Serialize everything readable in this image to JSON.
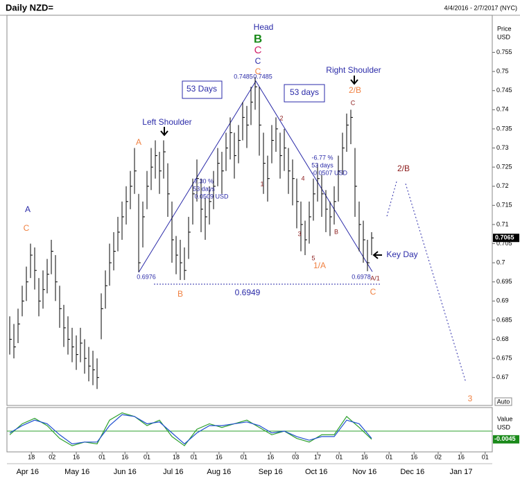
{
  "chart_data": {
    "type": "ohlc",
    "title": "Daily NZD=",
    "subtitle": "4/4/2016 - 2/7/2017 (NYC)",
    "y_label": [
      "Price",
      "USD"
    ],
    "y2_label": [
      "Value",
      "USD"
    ],
    "scale_button": "Auto",
    "xlim": [
      -0.67,
      116
    ],
    "xticks": [
      {
        "value": 5.2,
        "label": "18"
      },
      {
        "value": 10.2,
        "label": "02"
      },
      {
        "value": 16,
        "label": "16"
      },
      {
        "value": 22.2,
        "label": "01"
      },
      {
        "value": 27.7,
        "label": "16"
      },
      {
        "value": 33,
        "label": "01"
      },
      {
        "value": 40,
        "label": "18"
      },
      {
        "value": 44.3,
        "label": "01"
      },
      {
        "value": 50.3,
        "label": "16"
      },
      {
        "value": 56.3,
        "label": "01"
      },
      {
        "value": 62.7,
        "label": "16"
      },
      {
        "value": 68.7,
        "label": "03"
      },
      {
        "value": 74,
        "label": "17"
      },
      {
        "value": 79.2,
        "label": "01"
      },
      {
        "value": 85.3,
        "label": "16"
      },
      {
        "value": 91.2,
        "label": "01"
      },
      {
        "value": 97.2,
        "label": "16"
      },
      {
        "value": 103,
        "label": "02"
      },
      {
        "value": 108.5,
        "label": "16"
      },
      {
        "value": 114.3,
        "label": "01"
      }
    ],
    "month_ticks": [
      {
        "value": 4.3,
        "label": "Apr 16"
      },
      {
        "value": 16.2,
        "label": "May 16"
      },
      {
        "value": 27.7,
        "label": "Jun 16"
      },
      {
        "value": 39.3,
        "label": "Jul 16"
      },
      {
        "value": 50.3,
        "label": "Aug 16"
      },
      {
        "value": 62.7,
        "label": "Sep 16"
      },
      {
        "value": 73.7,
        "label": "Oct 16"
      },
      {
        "value": 85.3,
        "label": "Nov 16"
      },
      {
        "value": 96.8,
        "label": "Dec 16"
      },
      {
        "value": 108.5,
        "label": "Jan 17"
      }
    ],
    "ylim": [
      0.6627,
      0.7647
    ],
    "yticks": [
      0.67,
      0.675,
      0.68,
      0.685,
      0.69,
      0.695,
      0.7,
      0.705,
      0.71,
      0.715,
      0.72,
      0.725,
      0.73,
      0.735,
      0.74,
      0.745,
      0.75,
      0.755
    ],
    "color": "#000000",
    "high": [
      0.686,
      0.684,
      0.688,
      0.694,
      0.699,
      0.705,
      0.704,
      0.696,
      0.698,
      0.701,
      0.706,
      0.702,
      0.694,
      0.689,
      0.686,
      0.683,
      0.681,
      0.683,
      0.68,
      0.678,
      0.677,
      0.675,
      0.692,
      0.698,
      0.705,
      0.708,
      0.712,
      0.716,
      0.72,
      0.724,
      0.73,
      0.718,
      0.716,
      0.724,
      0.73,
      0.732,
      0.729,
      0.732,
      0.726,
      0.716,
      0.707,
      0.706,
      0.704,
      0.712,
      0.722,
      0.727,
      0.722,
      0.717,
      0.72,
      0.724,
      0.73,
      0.729,
      0.734,
      0.738,
      0.734,
      0.736,
      0.742,
      0.741,
      0.746,
      0.7485,
      0.746,
      0.734,
      0.728,
      0.736,
      0.738,
      0.734,
      0.735,
      0.73,
      0.727,
      0.722,
      0.716,
      0.711,
      0.716,
      0.722,
      0.726,
      0.723,
      0.719,
      0.716,
      0.72,
      0.728,
      0.734,
      0.739,
      0.74,
      0.73,
      0.716,
      0.711,
      0.706,
      0.708
    ],
    "low": [
      0.676,
      0.675,
      0.679,
      0.686,
      0.69,
      0.696,
      0.693,
      0.686,
      0.688,
      0.692,
      0.697,
      0.69,
      0.683,
      0.678,
      0.676,
      0.674,
      0.672,
      0.674,
      0.671,
      0.669,
      0.668,
      0.667,
      0.68,
      0.688,
      0.694,
      0.698,
      0.703,
      0.706,
      0.71,
      0.714,
      0.718,
      0.6976,
      0.704,
      0.714,
      0.719,
      0.722,
      0.718,
      0.722,
      0.712,
      0.7,
      0.697,
      0.6955,
      0.6955,
      0.701,
      0.71,
      0.716,
      0.708,
      0.706,
      0.71,
      0.714,
      0.72,
      0.718,
      0.724,
      0.727,
      0.722,
      0.726,
      0.732,
      0.73,
      0.736,
      0.74,
      0.728,
      0.718,
      0.716,
      0.726,
      0.729,
      0.722,
      0.724,
      0.718,
      0.715,
      0.709,
      0.703,
      0.702,
      0.705,
      0.711,
      0.716,
      0.712,
      0.708,
      0.707,
      0.71,
      0.716,
      0.723,
      0.729,
      0.731,
      0.712,
      0.703,
      0.7,
      0.6978,
      0.702
    ],
    "close": [
      0.68,
      0.678,
      0.684,
      0.69,
      0.695,
      0.702,
      0.698,
      0.69,
      0.693,
      0.697,
      0.703,
      0.695,
      0.688,
      0.683,
      0.68,
      0.678,
      0.676,
      0.679,
      0.675,
      0.673,
      0.672,
      0.67,
      0.688,
      0.694,
      0.7,
      0.703,
      0.708,
      0.712,
      0.716,
      0.72,
      0.724,
      0.7,
      0.712,
      0.72,
      0.725,
      0.728,
      0.724,
      0.729,
      0.718,
      0.706,
      0.702,
      0.7,
      0.698,
      0.708,
      0.718,
      0.722,
      0.714,
      0.712,
      0.716,
      0.72,
      0.726,
      0.724,
      0.73,
      0.734,
      0.728,
      0.732,
      0.738,
      0.736,
      0.742,
      0.746,
      0.736,
      0.726,
      0.722,
      0.732,
      0.735,
      0.728,
      0.73,
      0.724,
      0.722,
      0.716,
      0.71,
      0.706,
      0.712,
      0.718,
      0.722,
      0.718,
      0.714,
      0.712,
      0.716,
      0.724,
      0.73,
      0.736,
      0.738,
      0.72,
      0.71,
      0.706,
      0.7,
      0.7065
    ],
    "oscillator": {
      "ylim": [
        -0.011,
        0.011
      ],
      "level": 0,
      "x": [
        0,
        3,
        6,
        9,
        12,
        15,
        18,
        21,
        24,
        27,
        30,
        33,
        36,
        39,
        42,
        45,
        48,
        51,
        54,
        57,
        60,
        63,
        66,
        69,
        72,
        75,
        78,
        81,
        84,
        87
      ],
      "series": [
        {
          "color": "#2ca02c",
          "values": [
            -0.002,
            0.004,
            0.007,
            0.003,
            -0.004,
            -0.008,
            -0.006,
            -0.007,
            0.006,
            0.01,
            0.008,
            0.003,
            0.006,
            -0.003,
            -0.008,
            0.001,
            0.004,
            0.002,
            0.004,
            0.006,
            0.002,
            -0.002,
            0.0,
            -0.004,
            -0.006,
            -0.002,
            -0.002,
            0.008,
            0.002,
            -0.0045
          ]
        },
        {
          "color": "#1f4fd0",
          "values": [
            -0.001,
            0.003,
            0.006,
            0.004,
            -0.002,
            -0.007,
            -0.006,
            -0.006,
            0.003,
            0.009,
            0.008,
            0.004,
            0.005,
            -0.001,
            -0.007,
            -0.001,
            0.003,
            0.003,
            0.004,
            0.005,
            0.003,
            -0.001,
            0.0,
            -0.003,
            -0.005,
            -0.003,
            -0.003,
            0.006,
            0.004,
            -0.004
          ]
        }
      ]
    },
    "annotations": [
      "Head",
      "B",
      "C",
      "C",
      "C",
      "0.7485",
      "0.7485",
      "53 Days",
      "53 days",
      "Right Shoulder",
      "2/B",
      "C",
      "Left Shoulder",
      "A",
      "2",
      "1",
      "4",
      "3",
      "5",
      "1/A",
      "B",
      "A/1",
      "C",
      "B",
      "A",
      "C",
      "0.6976",
      "0.6978",
      "0.6949",
      "Key Day",
      "-6.77 %",
      "53 days",
      "-0.0507 USD",
      "7.30 %",
      "53 days",
      "0.0509 USD",
      "2/B",
      "3"
    ]
  }
}
